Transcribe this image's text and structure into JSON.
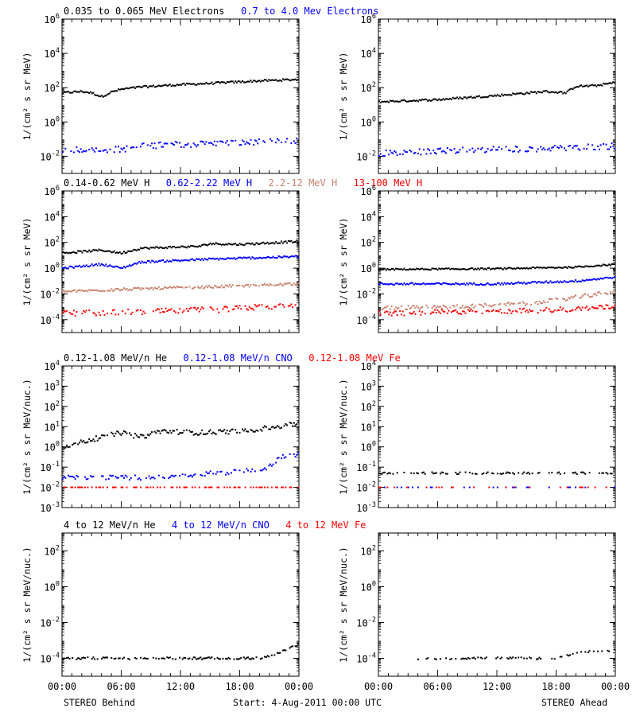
{
  "colors": {
    "black": "#000000",
    "blue": "#0000ff",
    "tan": "#c8826e",
    "red": "#ff0000"
  },
  "footer": {
    "left": "STEREO Behind",
    "center": "Start:  4-Aug-2011 00:00 UTC",
    "right": "STEREO Ahead"
  },
  "time_ticks": [
    "00:00",
    "06:00",
    "12:00",
    "18:00",
    "00:00"
  ],
  "chart_data": [
    {
      "type": "scatter",
      "row": 0,
      "panel": "STEREO Behind",
      "ylabel": "1/(cm² s sr MeV)",
      "yscale": "log",
      "ylim": [
        0.001,
        1000000
      ],
      "yticks": [
        {
          "v": 0.01,
          "exp": "-2"
        },
        {
          "v": 1,
          "exp": "0"
        },
        {
          "v": 100,
          "exp": "2"
        },
        {
          "v": 10000,
          "exp": "4"
        },
        {
          "v": 1000000,
          "exp": "6"
        }
      ],
      "legend": [
        {
          "text": "0.035 to 0.065 MeV Electrons",
          "color": "#000000"
        },
        {
          "text": "0.7 to 4.0 Mev Electrons",
          "color": "#0000ff"
        }
      ],
      "series": [
        {
          "name": "0.035 to 0.065 MeV Electrons",
          "color": "#000000",
          "scatter": 0.06,
          "density": 1.0,
          "points": [
            [
              0,
              50
            ],
            [
              2,
              60
            ],
            [
              3,
              50
            ],
            [
              4,
              30
            ],
            [
              5,
              55
            ],
            [
              6,
              80
            ],
            [
              8,
              110
            ],
            [
              12,
              150
            ],
            [
              16,
              190
            ],
            [
              20,
              250
            ],
            [
              24,
              300
            ]
          ]
        },
        {
          "name": "0.7 to 4.0 Mev Electrons",
          "color": "#0000ff",
          "scatter": 0.18,
          "density": 0.7,
          "points": [
            [
              0,
              0.025
            ],
            [
              6,
              0.025
            ],
            [
              8,
              0.04
            ],
            [
              12,
              0.05
            ],
            [
              18,
              0.06
            ],
            [
              24,
              0.08
            ]
          ]
        }
      ]
    },
    {
      "type": "scatter",
      "row": 0,
      "panel": "STEREO Ahead",
      "ylabel": "1/(cm² s sr MeV)",
      "yscale": "log",
      "ylim": [
        0.001,
        1000000
      ],
      "yticks": [
        {
          "v": 0.01,
          "exp": "-2"
        },
        {
          "v": 1,
          "exp": "0"
        },
        {
          "v": 100,
          "exp": "2"
        },
        {
          "v": 10000,
          "exp": "4"
        },
        {
          "v": 1000000,
          "exp": "6"
        }
      ],
      "legend": [],
      "series": [
        {
          "color": "#000000",
          "scatter": 0.06,
          "density": 1.0,
          "points": [
            [
              0,
              15
            ],
            [
              6,
              20
            ],
            [
              12,
              35
            ],
            [
              17,
              60
            ],
            [
              19,
              50
            ],
            [
              20,
              120
            ],
            [
              22,
              130
            ],
            [
              24,
              200
            ]
          ]
        },
        {
          "color": "#0000ff",
          "scatter": 0.18,
          "density": 0.7,
          "points": [
            [
              0,
              0.015
            ],
            [
              6,
              0.02
            ],
            [
              12,
              0.025
            ],
            [
              18,
              0.03
            ],
            [
              24,
              0.04
            ]
          ]
        }
      ]
    },
    {
      "type": "scatter",
      "row": 1,
      "panel": "STEREO Behind",
      "ylabel": "1/(cm² s sr MeV)",
      "yscale": "log",
      "ylim": [
        1e-05,
        1000000
      ],
      "yticks": [
        {
          "v": 0.0001,
          "exp": "-4"
        },
        {
          "v": 0.01,
          "exp": "-2"
        },
        {
          "v": 1,
          "exp": "0"
        },
        {
          "v": 100,
          "exp": "2"
        },
        {
          "v": 10000,
          "exp": "4"
        },
        {
          "v": 1000000,
          "exp": "6"
        }
      ],
      "legend": [
        {
          "text": "0.14-0.62 MeV H",
          "color": "#000000"
        },
        {
          "text": "0.62-2.22 MeV H",
          "color": "#0000ff"
        },
        {
          "text": "2.2-12 MeV H",
          "color": "#c8826e"
        },
        {
          "text": "13-100 MeV H",
          "color": "#ff0000"
        }
      ],
      "series": [
        {
          "name": "0.14-0.62 MeV H",
          "color": "#000000",
          "scatter": 0.08,
          "density": 1.0,
          "points": [
            [
              0,
              15
            ],
            [
              4,
              25
            ],
            [
              6,
              15
            ],
            [
              8,
              35
            ],
            [
              14,
              50
            ],
            [
              15,
              80
            ],
            [
              18,
              70
            ],
            [
              24,
              120
            ]
          ]
        },
        {
          "name": "0.62-2.22 MeV H",
          "color": "#0000ff",
          "scatter": 0.08,
          "density": 1.0,
          "points": [
            [
              0,
              1
            ],
            [
              4,
              2
            ],
            [
              6,
              1
            ],
            [
              8,
              3
            ],
            [
              15,
              5
            ],
            [
              24,
              8
            ]
          ]
        },
        {
          "name": "2.2-12 MeV H",
          "color": "#c8826e",
          "scatter": 0.1,
          "density": 0.9,
          "points": [
            [
              0,
              0.015
            ],
            [
              8,
              0.025
            ],
            [
              15,
              0.035
            ],
            [
              24,
              0.06
            ]
          ]
        },
        {
          "name": "13-100 MeV H",
          "color": "#ff0000",
          "scatter": 0.22,
          "density": 0.7,
          "points": [
            [
              0,
              0.0003
            ],
            [
              8,
              0.0004
            ],
            [
              16,
              0.0006
            ],
            [
              24,
              0.0015
            ]
          ]
        }
      ]
    },
    {
      "type": "scatter",
      "row": 1,
      "panel": "STEREO Ahead",
      "ylabel": "1/(cm² s sr MeV)",
      "yscale": "log",
      "ylim": [
        1e-05,
        1000000
      ],
      "yticks": [
        {
          "v": 0.0001,
          "exp": "-4"
        },
        {
          "v": 0.01,
          "exp": "-2"
        },
        {
          "v": 1,
          "exp": "0"
        },
        {
          "v": 100,
          "exp": "2"
        },
        {
          "v": 10000,
          "exp": "4"
        },
        {
          "v": 1000000,
          "exp": "6"
        }
      ],
      "legend": [],
      "series": [
        {
          "color": "#000000",
          "scatter": 0.06,
          "density": 1.0,
          "points": [
            [
              0,
              0.8
            ],
            [
              12,
              0.9
            ],
            [
              20,
              1.2
            ],
            [
              24,
              2
            ]
          ]
        },
        {
          "color": "#0000ff",
          "scatter": 0.08,
          "density": 1.0,
          "points": [
            [
              0,
              0.06
            ],
            [
              12,
              0.06
            ],
            [
              20,
              0.1
            ],
            [
              24,
              0.2
            ]
          ]
        },
        {
          "color": "#c8826e",
          "scatter": 0.15,
          "density": 0.8,
          "points": [
            [
              0,
              0.0008
            ],
            [
              8,
              0.001
            ],
            [
              16,
              0.002
            ],
            [
              24,
              0.015
            ]
          ]
        },
        {
          "color": "#ff0000",
          "scatter": 0.2,
          "density": 0.8,
          "points": [
            [
              0,
              0.0003
            ],
            [
              8,
              0.0004
            ],
            [
              16,
              0.0005
            ],
            [
              24,
              0.001
            ]
          ]
        }
      ]
    },
    {
      "type": "scatter",
      "row": 2,
      "panel": "STEREO Behind",
      "ylabel": "1/(cm² s sr MeV/nuc.)",
      "yscale": "log",
      "ylim": [
        0.001,
        10000
      ],
      "yticks": [
        {
          "v": 0.001,
          "exp": "-3"
        },
        {
          "v": 0.01,
          "exp": "-2"
        },
        {
          "v": 0.1,
          "exp": "-1"
        },
        {
          "v": 1,
          "exp": "0"
        },
        {
          "v": 10,
          "exp": "1"
        },
        {
          "v": 100,
          "exp": "2"
        },
        {
          "v": 1000,
          "exp": "3"
        },
        {
          "v": 10000,
          "exp": "4"
        }
      ],
      "legend": [
        {
          "text": "0.12-1.08 MeV/n He",
          "color": "#000000"
        },
        {
          "text": "0.12-1.08 MeV/n CNO",
          "color": "#0000ff"
        },
        {
          "text": "0.12-1.08 MeV Fe",
          "color": "#ff0000"
        }
      ],
      "series": [
        {
          "name": "0.12-1.08 MeV/n He",
          "color": "#000000",
          "scatter": 0.12,
          "density": 0.9,
          "points": [
            [
              0,
              1
            ],
            [
              4,
              3
            ],
            [
              6,
              5
            ],
            [
              8,
              3
            ],
            [
              10,
              6
            ],
            [
              14,
              5
            ],
            [
              18,
              6
            ],
            [
              22,
              10
            ],
            [
              24,
              15
            ]
          ]
        },
        {
          "name": "0.12-1.08 MeV/n CNO",
          "color": "#0000ff",
          "scatter": 0.12,
          "density": 0.6,
          "points": [
            [
              0,
              0.03
            ],
            [
              8,
              0.03
            ],
            [
              12,
              0.04
            ],
            [
              18,
              0.06
            ],
            [
              21,
              0.1
            ],
            [
              22,
              0.3
            ],
            [
              24,
              0.4
            ]
          ]
        },
        {
          "name": "0.12-1.08 MeV Fe",
          "color": "#ff0000",
          "scatter": 0.0,
          "density": 0.5,
          "points": [
            [
              0,
              0.01
            ],
            [
              24,
              0.01
            ]
          ]
        }
      ]
    },
    {
      "type": "scatter",
      "row": 2,
      "panel": "STEREO Ahead",
      "ylabel": "1/(cm² s sr MeV/nuc.)",
      "yscale": "log",
      "ylim": [
        0.001,
        10000
      ],
      "yticks": [
        {
          "v": 0.001,
          "exp": "-3"
        },
        {
          "v": 0.01,
          "exp": "-2"
        },
        {
          "v": 0.1,
          "exp": "-1"
        },
        {
          "v": 1,
          "exp": "0"
        },
        {
          "v": 10,
          "exp": "1"
        },
        {
          "v": 100,
          "exp": "2"
        },
        {
          "v": 1000,
          "exp": "3"
        },
        {
          "v": 10000,
          "exp": "4"
        }
      ],
      "legend": [],
      "series": [
        {
          "color": "#000000",
          "scatter": 0.05,
          "density": 0.5,
          "points": [
            [
              0,
              0.05
            ],
            [
              24,
              0.05
            ]
          ]
        },
        {
          "color": "#0000ff",
          "scatter": 0.0,
          "density": 0.12,
          "points": [
            [
              0,
              0.01
            ],
            [
              24,
              0.01
            ]
          ]
        },
        {
          "color": "#ff0000",
          "scatter": 0.0,
          "density": 0.1,
          "points": [
            [
              0,
              0.01
            ],
            [
              24,
              0.01
            ]
          ]
        }
      ]
    },
    {
      "type": "scatter",
      "row": 3,
      "panel": "STEREO Behind",
      "ylabel": "1/(cm² s sr MeV/nuc.)",
      "yscale": "log",
      "ylim": [
        1e-05,
        1000
      ],
      "yticks": [
        {
          "v": 0.0001,
          "exp": "-4"
        },
        {
          "v": 0.01,
          "exp": "-2"
        },
        {
          "v": 1,
          "exp": "0"
        },
        {
          "v": 100,
          "exp": "2"
        }
      ],
      "legend": [
        {
          "text": "4 to 12 MeV/n He",
          "color": "#000000"
        },
        {
          "text": "4 to 12 MeV/n CNO",
          "color": "#0000ff"
        },
        {
          "text": "4 to 12 MeV Fe",
          "color": "#ff0000"
        }
      ],
      "series": [
        {
          "name": "4 to 12 MeV/n He",
          "color": "#000000",
          "scatter": 0.06,
          "density": 0.6,
          "points": [
            [
              0,
              0.0001
            ],
            [
              20,
              0.0001
            ],
            [
              22,
              0.0002
            ],
            [
              24,
              0.0006
            ]
          ]
        }
      ]
    },
    {
      "type": "scatter",
      "row": 3,
      "panel": "STEREO Ahead",
      "ylabel": "1/(cm² s sr MeV/nuc.)",
      "yscale": "log",
      "ylim": [
        1e-05,
        1000
      ],
      "yticks": [
        {
          "v": 0.0001,
          "exp": "-4"
        },
        {
          "v": 0.01,
          "exp": "-2"
        },
        {
          "v": 1,
          "exp": "0"
        },
        {
          "v": 100,
          "exp": "2"
        }
      ],
      "legend": [],
      "series": [
        {
          "color": "#000000",
          "scatter": 0.06,
          "density": 0.5,
          "points": [
            [
              4,
              0.0001
            ],
            [
              18,
              0.0001
            ],
            [
              20,
              0.0002
            ],
            [
              24,
              0.0003
            ]
          ]
        }
      ]
    }
  ]
}
